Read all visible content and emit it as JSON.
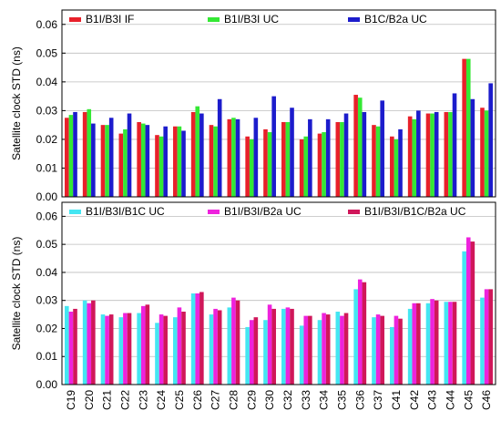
{
  "chart_data": [
    {
      "type": "bar",
      "ylabel": "Satellite clock STD (ns)",
      "xlabel": "",
      "ylim": [
        0,
        0.065
      ],
      "yticks": [
        "0.00",
        "0.01",
        "0.02",
        "0.03",
        "0.04",
        "0.05",
        "0.06"
      ],
      "ytick_values": [
        0,
        0.01,
        0.02,
        0.03,
        0.04,
        0.05,
        0.06
      ],
      "grid": true,
      "legend_position": "top",
      "categories": [
        "C19",
        "C20",
        "C21",
        "C22",
        "C23",
        "C24",
        "C25",
        "C26",
        "C27",
        "C28",
        "C29",
        "C30",
        "C32",
        "C33",
        "C34",
        "C35",
        "C36",
        "C37",
        "C41",
        "C42",
        "C43",
        "C44",
        "C45",
        "C46"
      ],
      "series": [
        {
          "name": "B1I/B3I IF",
          "color": "#e8202a",
          "values": [
            0.0275,
            0.0295,
            0.025,
            0.022,
            0.026,
            0.0215,
            0.0245,
            0.0295,
            0.025,
            0.027,
            0.021,
            0.0235,
            0.026,
            0.02,
            0.022,
            0.026,
            0.0355,
            0.025,
            0.021,
            0.028,
            0.029,
            0.0295,
            0.048,
            0.031
          ]
        },
        {
          "name": "B1I/B3I UC",
          "color": "#34e834",
          "values": [
            0.0285,
            0.0305,
            0.025,
            0.0235,
            0.0255,
            0.021,
            0.0245,
            0.0315,
            0.0245,
            0.0275,
            0.02,
            0.0225,
            0.026,
            0.021,
            0.0225,
            0.026,
            0.0345,
            0.0245,
            0.02,
            0.027,
            0.029,
            0.0295,
            0.048,
            0.03
          ]
        },
        {
          "name": "B1C/B2a UC",
          "color": "#1c1ccc",
          "values": [
            0.0295,
            0.0255,
            0.0275,
            0.029,
            0.025,
            0.0245,
            0.023,
            0.029,
            0.034,
            0.027,
            0.0275,
            0.035,
            0.031,
            0.027,
            0.027,
            0.029,
            0.0295,
            0.0335,
            0.0235,
            0.03,
            0.0295,
            0.036,
            0.034,
            0.0395
          ]
        }
      ]
    },
    {
      "type": "bar",
      "ylabel": "Satellite clock STD (ns)",
      "xlabel": "",
      "ylim": [
        0,
        0.065
      ],
      "yticks": [
        "0.00",
        "0.01",
        "0.02",
        "0.03",
        "0.04",
        "0.05",
        "0.06"
      ],
      "ytick_values": [
        0,
        0.01,
        0.02,
        0.03,
        0.04,
        0.05,
        0.06
      ],
      "grid": true,
      "legend_position": "top",
      "categories": [
        "C19",
        "C20",
        "C21",
        "C22",
        "C23",
        "C24",
        "C25",
        "C26",
        "C27",
        "C28",
        "C29",
        "C30",
        "C32",
        "C33",
        "C34",
        "C35",
        "C36",
        "C37",
        "C41",
        "C42",
        "C43",
        "C44",
        "C45",
        "C46"
      ],
      "series": [
        {
          "name": "B1I/B3I/B1C UC",
          "color": "#44e6f2",
          "values": [
            0.028,
            0.03,
            0.025,
            0.024,
            0.0255,
            0.022,
            0.024,
            0.0325,
            0.025,
            0.0275,
            0.0205,
            0.023,
            0.027,
            0.021,
            0.023,
            0.026,
            0.034,
            0.024,
            0.0205,
            0.027,
            0.029,
            0.0295,
            0.0475,
            0.031
          ]
        },
        {
          "name": "B1I/B3I/B2a UC",
          "color": "#ee22dd",
          "values": [
            0.026,
            0.029,
            0.0245,
            0.0255,
            0.028,
            0.025,
            0.0275,
            0.0325,
            0.027,
            0.031,
            0.023,
            0.0285,
            0.0275,
            0.0245,
            0.0255,
            0.0245,
            0.0375,
            0.025,
            0.0245,
            0.029,
            0.0305,
            0.0295,
            0.0525,
            0.034
          ]
        },
        {
          "name": "B1I/B3I/B1C/B2a UC",
          "color": "#d0175a",
          "values": [
            0.027,
            0.03,
            0.025,
            0.0255,
            0.0285,
            0.0245,
            0.026,
            0.033,
            0.0265,
            0.03,
            0.024,
            0.027,
            0.027,
            0.0245,
            0.025,
            0.0255,
            0.0365,
            0.0245,
            0.0235,
            0.029,
            0.03,
            0.0295,
            0.051,
            0.034
          ]
        }
      ]
    }
  ]
}
